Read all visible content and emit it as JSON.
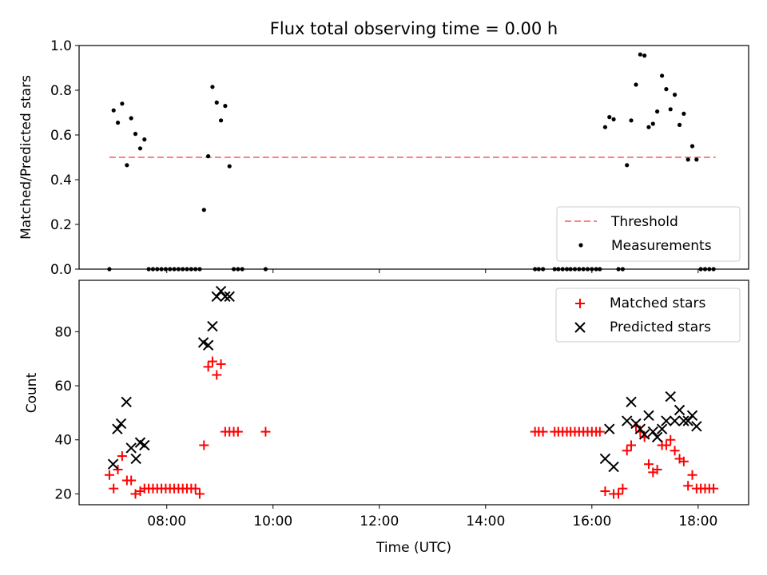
{
  "title": "Flux total observing time = 0.00 h",
  "colors": {
    "threshold": "#ff8080",
    "measurements": "#000000",
    "matched": "#ff0000",
    "predicted": "#000000"
  },
  "chart_data": [
    {
      "type": "scatter",
      "ylabel": "Matched/Predicted stars",
      "xlabel": "",
      "xlim": [
        6.35,
        18.95
      ],
      "ylim": [
        0,
        1.0
      ],
      "yticks": [
        "0.0",
        "0.2",
        "0.4",
        "0.6",
        "0.8",
        "1.0"
      ],
      "ytick_values": [
        0,
        0.2,
        0.4,
        0.6,
        0.8,
        1.0
      ],
      "legend_position": "lower-right",
      "threshold": {
        "name": "Threshold",
        "x": [
          6.92,
          18.33
        ],
        "y": 0.5
      },
      "series": [
        {
          "name": "Measurements",
          "points": [
            [
              6.92,
              0
            ],
            [
              7.0,
              0.71
            ],
            [
              7.08,
              0.655
            ],
            [
              7.16,
              0.74
            ],
            [
              7.25,
              0.465
            ],
            [
              7.33,
              0.675
            ],
            [
              7.41,
              0.605
            ],
            [
              7.5,
              0.54
            ],
            [
              7.58,
              0.58
            ],
            [
              7.66,
              0
            ],
            [
              7.74,
              0
            ],
            [
              7.82,
              0
            ],
            [
              7.9,
              0
            ],
            [
              7.98,
              0
            ],
            [
              8.06,
              0
            ],
            [
              8.14,
              0
            ],
            [
              8.22,
              0
            ],
            [
              8.3,
              0
            ],
            [
              8.38,
              0
            ],
            [
              8.46,
              0
            ],
            [
              8.54,
              0
            ],
            [
              8.62,
              0
            ],
            [
              8.7,
              0.265
            ],
            [
              8.78,
              0.505
            ],
            [
              8.86,
              0.815
            ],
            [
              8.94,
              0.745
            ],
            [
              9.02,
              0.665
            ],
            [
              9.1,
              0.73
            ],
            [
              9.18,
              0.46
            ],
            [
              9.26,
              0
            ],
            [
              9.34,
              0
            ],
            [
              9.42,
              0
            ],
            [
              9.86,
              0
            ],
            [
              14.93,
              0
            ],
            [
              15.0,
              0
            ],
            [
              15.08,
              0
            ],
            [
              15.3,
              0
            ],
            [
              15.37,
              0
            ],
            [
              15.45,
              0
            ],
            [
              15.53,
              0
            ],
            [
              15.6,
              0
            ],
            [
              15.68,
              0
            ],
            [
              15.76,
              0
            ],
            [
              15.84,
              0
            ],
            [
              15.92,
              0
            ],
            [
              16.0,
              0
            ],
            [
              16.08,
              0
            ],
            [
              16.15,
              0
            ],
            [
              16.25,
              0.635
            ],
            [
              16.33,
              0.68
            ],
            [
              16.41,
              0.67
            ],
            [
              16.5,
              0
            ],
            [
              16.58,
              0
            ],
            [
              16.66,
              0.465
            ],
            [
              16.74,
              0.665
            ],
            [
              16.83,
              0.825
            ],
            [
              16.91,
              0.96
            ],
            [
              16.99,
              0.955
            ],
            [
              17.07,
              0.635
            ],
            [
              17.15,
              0.65
            ],
            [
              17.23,
              0.705
            ],
            [
              17.32,
              0.865
            ],
            [
              17.4,
              0.805
            ],
            [
              17.48,
              0.715
            ],
            [
              17.56,
              0.78
            ],
            [
              17.65,
              0.645
            ],
            [
              17.73,
              0.695
            ],
            [
              17.81,
              0.49
            ],
            [
              17.89,
              0.55
            ],
            [
              17.97,
              0.49
            ],
            [
              18.05,
              0
            ],
            [
              18.13,
              0
            ],
            [
              18.21,
              0
            ],
            [
              18.29,
              0
            ]
          ]
        }
      ]
    },
    {
      "type": "scatter",
      "ylabel": "Count",
      "xlabel": "Time (UTC)",
      "xlim": [
        6.35,
        18.95
      ],
      "ylim": [
        16,
        99
      ],
      "xticks": [
        "08:00",
        "10:00",
        "12:00",
        "14:00",
        "16:00",
        "18:00"
      ],
      "xtick_values": [
        8,
        10,
        12,
        14,
        16,
        18
      ],
      "yticks": [
        "20",
        "40",
        "60",
        "80"
      ],
      "ytick_values": [
        20,
        40,
        60,
        80
      ],
      "legend_position": "upper-right",
      "series": [
        {
          "name": "Matched stars",
          "marker": "plus",
          "points": [
            [
              6.92,
              27
            ],
            [
              7.0,
              22
            ],
            [
              7.08,
              29
            ],
            [
              7.16,
              34
            ],
            [
              7.25,
              25
            ],
            [
              7.33,
              25
            ],
            [
              7.41,
              20
            ],
            [
              7.5,
              21
            ],
            [
              7.58,
              22
            ],
            [
              7.66,
              22
            ],
            [
              7.74,
              22
            ],
            [
              7.82,
              22
            ],
            [
              7.9,
              22
            ],
            [
              7.98,
              22
            ],
            [
              8.06,
              22
            ],
            [
              8.14,
              22
            ],
            [
              8.22,
              22
            ],
            [
              8.3,
              22
            ],
            [
              8.38,
              22
            ],
            [
              8.46,
              22
            ],
            [
              8.54,
              22
            ],
            [
              8.62,
              20
            ],
            [
              8.7,
              38
            ],
            [
              8.78,
              67
            ],
            [
              8.86,
              69
            ],
            [
              8.94,
              64
            ],
            [
              9.02,
              68
            ],
            [
              9.1,
              43
            ],
            [
              9.18,
              43
            ],
            [
              9.26,
              43
            ],
            [
              9.34,
              43
            ],
            [
              9.86,
              43
            ],
            [
              14.93,
              43
            ],
            [
              15.0,
              43
            ],
            [
              15.08,
              43
            ],
            [
              15.3,
              43
            ],
            [
              15.37,
              43
            ],
            [
              15.45,
              43
            ],
            [
              15.53,
              43
            ],
            [
              15.6,
              43
            ],
            [
              15.68,
              43
            ],
            [
              15.76,
              43
            ],
            [
              15.84,
              43
            ],
            [
              15.92,
              43
            ],
            [
              16.0,
              43
            ],
            [
              16.08,
              43
            ],
            [
              16.15,
              43
            ],
            [
              16.25,
              21
            ],
            [
              16.41,
              20
            ],
            [
              16.5,
              20
            ],
            [
              16.58,
              22
            ],
            [
              16.66,
              36
            ],
            [
              16.74,
              38
            ],
            [
              16.83,
              45
            ],
            [
              16.91,
              43
            ],
            [
              16.99,
              41
            ],
            [
              17.07,
              31
            ],
            [
              17.15,
              28
            ],
            [
              17.23,
              29
            ],
            [
              17.32,
              38
            ],
            [
              17.4,
              38
            ],
            [
              17.48,
              40
            ],
            [
              17.56,
              36
            ],
            [
              17.65,
              33
            ],
            [
              17.73,
              32
            ],
            [
              17.81,
              23
            ],
            [
              17.89,
              27
            ],
            [
              17.97,
              22
            ],
            [
              18.05,
              22
            ],
            [
              18.13,
              22
            ],
            [
              18.21,
              22
            ],
            [
              18.29,
              22
            ]
          ]
        },
        {
          "name": "Predicted stars",
          "marker": "x",
          "points": [
            [
              6.99,
              31
            ],
            [
              7.07,
              44
            ],
            [
              7.14,
              46
            ],
            [
              7.24,
              54
            ],
            [
              7.33,
              37
            ],
            [
              7.42,
              33
            ],
            [
              7.5,
              39
            ],
            [
              7.58,
              38
            ],
            [
              8.69,
              76
            ],
            [
              8.78,
              75
            ],
            [
              8.86,
              82
            ],
            [
              8.94,
              93
            ],
            [
              9.02,
              95
            ],
            [
              9.1,
              93
            ],
            [
              9.18,
              93
            ],
            [
              16.25,
              33
            ],
            [
              16.33,
              44
            ],
            [
              16.41,
              30
            ],
            [
              16.66,
              47
            ],
            [
              16.74,
              54
            ],
            [
              16.83,
              46
            ],
            [
              16.91,
              44
            ],
            [
              16.99,
              42
            ],
            [
              17.07,
              49
            ],
            [
              17.15,
              43
            ],
            [
              17.23,
              41
            ],
            [
              17.32,
              44
            ],
            [
              17.4,
              47
            ],
            [
              17.48,
              56
            ],
            [
              17.56,
              47
            ],
            [
              17.65,
              51
            ],
            [
              17.73,
              47
            ],
            [
              17.81,
              47
            ],
            [
              17.89,
              49
            ],
            [
              17.97,
              45
            ]
          ]
        }
      ]
    }
  ]
}
